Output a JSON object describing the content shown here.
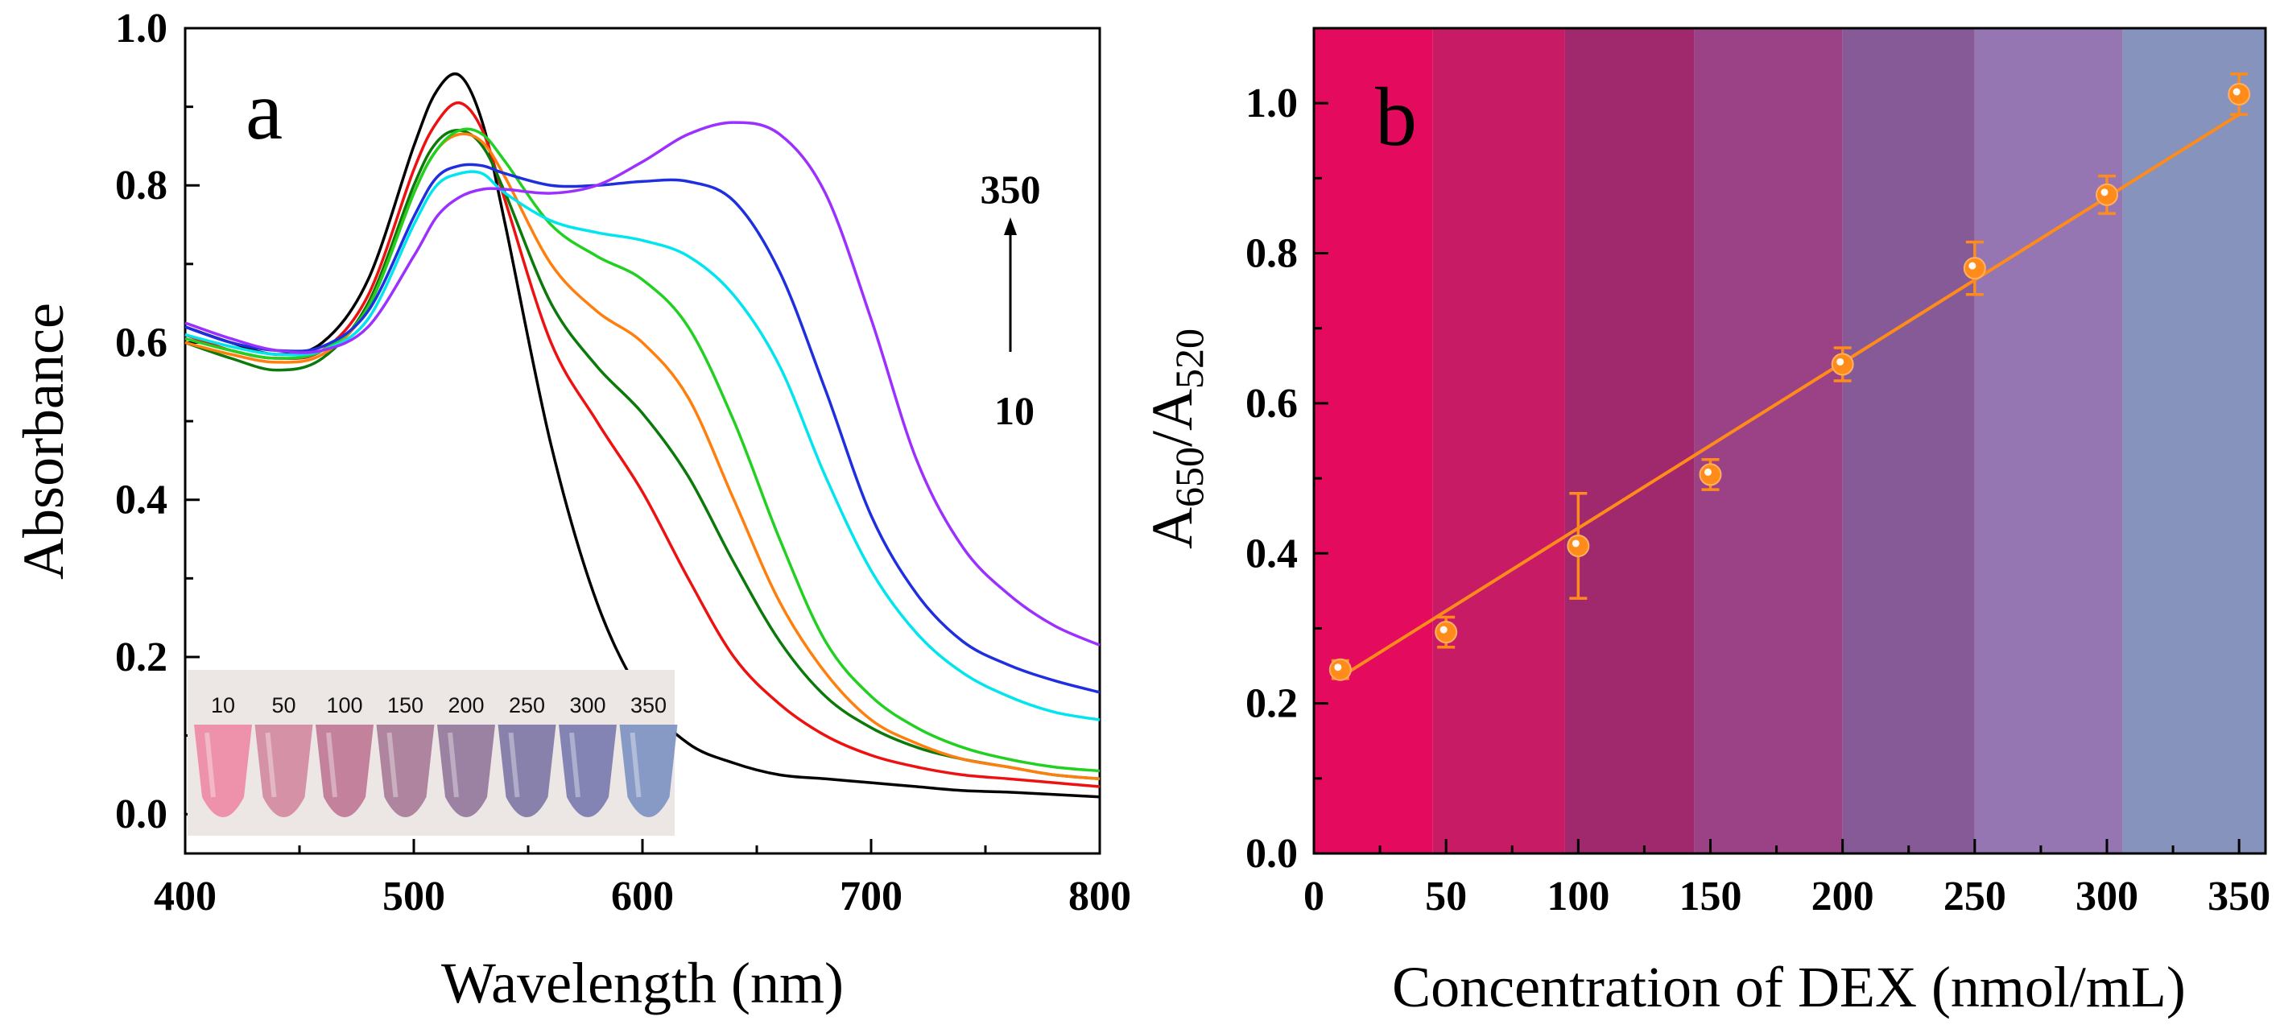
{
  "chart_data": [
    {
      "type": "line",
      "panel_label": "a",
      "xlabel": "Wavelength (nm)",
      "ylabel": "Absorbance",
      "xlim": [
        400,
        800
      ],
      "ylim": [
        -0.05,
        1.0
      ],
      "xticks": [
        400,
        500,
        600,
        700,
        800
      ],
      "yticks": [
        0.0,
        0.2,
        0.4,
        0.6,
        0.8,
        1.0
      ],
      "x": [
        400,
        420,
        440,
        460,
        480,
        500,
        510,
        520,
        530,
        540,
        560,
        580,
        600,
        620,
        640,
        660,
        680,
        700,
        720,
        740,
        760,
        780,
        800
      ],
      "series": [
        {
          "name": "10",
          "color": "#000000",
          "values": [
            0.62,
            0.6,
            0.585,
            0.6,
            0.68,
            0.85,
            0.92,
            0.94,
            0.88,
            0.75,
            0.47,
            0.27,
            0.15,
            0.09,
            0.065,
            0.05,
            0.045,
            0.04,
            0.035,
            0.03,
            0.028,
            0.025,
            0.022
          ]
        },
        {
          "name": "50",
          "color": "#ee1111",
          "values": [
            0.61,
            0.59,
            0.58,
            0.59,
            0.66,
            0.82,
            0.88,
            0.905,
            0.87,
            0.78,
            0.6,
            0.5,
            0.41,
            0.3,
            0.2,
            0.14,
            0.1,
            0.075,
            0.06,
            0.05,
            0.045,
            0.04,
            0.035
          ]
        },
        {
          "name": "100",
          "color": "#0b7a0b",
          "values": [
            0.6,
            0.58,
            0.565,
            0.58,
            0.65,
            0.8,
            0.855,
            0.87,
            0.85,
            0.79,
            0.65,
            0.57,
            0.51,
            0.43,
            0.32,
            0.22,
            0.15,
            0.11,
            0.085,
            0.07,
            0.06,
            0.05,
            0.045
          ]
        },
        {
          "name": "150",
          "color": "#ff7f0e",
          "values": [
            0.6,
            0.585,
            0.575,
            0.585,
            0.645,
            0.79,
            0.845,
            0.865,
            0.855,
            0.81,
            0.7,
            0.64,
            0.6,
            0.53,
            0.4,
            0.27,
            0.18,
            0.12,
            0.09,
            0.07,
            0.06,
            0.05,
            0.045
          ]
        },
        {
          "name": "200",
          "color": "#22d022",
          "values": [
            0.605,
            0.59,
            0.58,
            0.59,
            0.645,
            0.79,
            0.845,
            0.87,
            0.865,
            0.83,
            0.75,
            0.71,
            0.68,
            0.62,
            0.5,
            0.35,
            0.22,
            0.15,
            0.11,
            0.085,
            0.07,
            0.06,
            0.055
          ]
        },
        {
          "name": "250",
          "color": "#00e5ee",
          "values": [
            0.61,
            0.595,
            0.585,
            0.59,
            0.63,
            0.75,
            0.8,
            0.815,
            0.815,
            0.79,
            0.755,
            0.74,
            0.73,
            0.71,
            0.66,
            0.57,
            0.43,
            0.31,
            0.23,
            0.18,
            0.15,
            0.13,
            0.12
          ]
        },
        {
          "name": "300",
          "color": "#1f2fe0",
          "values": [
            0.62,
            0.6,
            0.59,
            0.595,
            0.64,
            0.76,
            0.81,
            0.825,
            0.825,
            0.815,
            0.8,
            0.8,
            0.805,
            0.805,
            0.78,
            0.69,
            0.54,
            0.38,
            0.28,
            0.22,
            0.19,
            0.17,
            0.155
          ]
        },
        {
          "name": "350",
          "color": "#9b30ff",
          "values": [
            0.625,
            0.605,
            0.59,
            0.59,
            0.62,
            0.71,
            0.76,
            0.785,
            0.795,
            0.795,
            0.79,
            0.8,
            0.83,
            0.865,
            0.88,
            0.865,
            0.79,
            0.63,
            0.45,
            0.34,
            0.28,
            0.24,
            0.215
          ]
        }
      ],
      "annotations": {
        "top": "350",
        "bottom": "10"
      },
      "inset": {
        "labels": [
          "10",
          "50",
          "100",
          "150",
          "200",
          "250",
          "300",
          "350"
        ],
        "colors": [
          "#ee8aa6",
          "#d28aa0",
          "#c07896",
          "#a87c98",
          "#94789c",
          "#7e78a6",
          "#7a7cb0",
          "#7e94c2"
        ]
      }
    },
    {
      "type": "scatter",
      "panel_label": "b",
      "xlabel": "Concentration of DEX (nmol/mL)",
      "ylabel_main": "A",
      "ylabel_sub1": "650",
      "ylabel_slash": "/A",
      "ylabel_sub2": "520",
      "xlim": [
        0,
        360
      ],
      "ylim": [
        0.0,
        1.1
      ],
      "xticks": [
        0,
        50,
        100,
        150,
        200,
        250,
        300,
        350
      ],
      "yticks": [
        0.0,
        0.2,
        0.4,
        0.6,
        0.8,
        1.0
      ],
      "x": [
        10,
        50,
        100,
        150,
        200,
        250,
        300,
        350
      ],
      "y": [
        0.245,
        0.295,
        0.41,
        0.505,
        0.652,
        0.78,
        0.878,
        1.012
      ],
      "errors": [
        0.012,
        0.02,
        0.07,
        0.02,
        0.022,
        0.035,
        0.025,
        0.027
      ],
      "marker_color": "#ff8c1a",
      "fit": {
        "x": [
          10,
          350
        ],
        "y": [
          0.235,
          0.985
        ],
        "color": "#ff8c1a"
      },
      "background_bands": [
        {
          "from": 0,
          "to": 45,
          "color": "#e40a5e"
        },
        {
          "from": 45,
          "to": 95,
          "color": "#c81b66"
        },
        {
          "from": 95,
          "to": 144,
          "color": "#a0286c"
        },
        {
          "from": 144,
          "to": 200,
          "color": "#9b4186"
        },
        {
          "from": 200,
          "to": 250,
          "color": "#865a96"
        },
        {
          "from": 250,
          "to": 306,
          "color": "#9576b2"
        },
        {
          "from": 306,
          "to": 360,
          "color": "#8593bd"
        }
      ]
    }
  ]
}
